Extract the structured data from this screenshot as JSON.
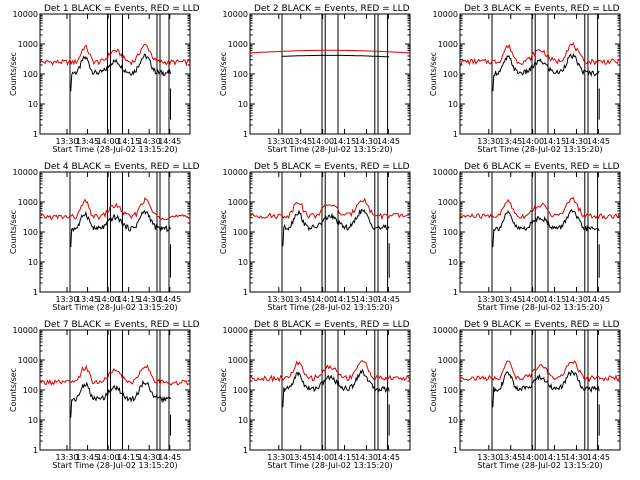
{
  "colors": {
    "events": "#000000",
    "lld": "#dd0000",
    "axis": "#000000"
  },
  "chart_data": [
    {
      "type": "line",
      "title": "Det 1  BLACK = Events, RED = LLD",
      "xlabel": "Start Time (28-Jul-02 13:15:20)",
      "ylabel": "Counts/sec",
      "xticks": [
        "13:30",
        "13:45",
        "14:00",
        "14:15",
        "14:30",
        "14:45"
      ],
      "yticks": [
        "1",
        "10",
        "100",
        "1000",
        "10000"
      ],
      "log_y": true,
      "ylim": [
        1,
        10000
      ],
      "series": [
        {
          "name": "Events",
          "level": 110,
          "dips": true
        },
        {
          "name": "LLD",
          "level": 250
        }
      ]
    },
    {
      "type": "line",
      "title": "Det 2  BLACK = Events, RED = LLD",
      "xlabel": "Start Time (28-Jul-02 13:15:20)",
      "ylabel": "Counts/sec",
      "xticks": [
        "13:30",
        "13:45",
        "14:00",
        "14:15",
        "14:30",
        "14:45"
      ],
      "yticks": [
        "1",
        "10",
        "100",
        "1000",
        "10000"
      ],
      "log_y": true,
      "ylim": [
        1,
        10000
      ],
      "series": [
        {
          "name": "Events",
          "level": 380,
          "flat": true
        },
        {
          "name": "LLD",
          "level": 560,
          "flat": true
        }
      ]
    },
    {
      "type": "line",
      "title": "Det 3  BLACK = Events, RED = LLD",
      "xlabel": "Start Time (28-Jul-02 13:15:20)",
      "ylabel": "Counts/sec",
      "xticks": [
        "13:30",
        "13:45",
        "14:00",
        "14:15",
        "14:30",
        "14:45"
      ],
      "yticks": [
        "1",
        "10",
        "100",
        "1000",
        "10000"
      ],
      "log_y": true,
      "ylim": [
        1,
        10000
      ],
      "series": [
        {
          "name": "Events",
          "level": 110,
          "dips": true
        },
        {
          "name": "LLD",
          "level": 260
        }
      ]
    },
    {
      "type": "line",
      "title": "Det 4  BLACK = Events, RED = LLD",
      "xlabel": "Start Time (28-Jul-02 13:15:20)",
      "ylabel": "Counts/sec",
      "xticks": [
        "13:30",
        "13:45",
        "14:00",
        "14:15",
        "14:30",
        "14:45"
      ],
      "yticks": [
        "1",
        "10",
        "100",
        "1000",
        "10000"
      ],
      "log_y": true,
      "ylim": [
        1,
        10000
      ],
      "series": [
        {
          "name": "Events",
          "level": 130,
          "dips": true
        },
        {
          "name": "LLD",
          "level": 320
        }
      ]
    },
    {
      "type": "line",
      "title": "Det 5  BLACK = Events, RED = LLD",
      "xlabel": "Start Time (28-Jul-02 13:15:20)",
      "ylabel": "Counts/sec",
      "xticks": [
        "13:30",
        "13:45",
        "14:00",
        "14:15",
        "14:30",
        "14:45"
      ],
      "yticks": [
        "1",
        "10",
        "100",
        "1000",
        "10000"
      ],
      "log_y": true,
      "ylim": [
        1,
        10000
      ],
      "series": [
        {
          "name": "Events",
          "level": 140,
          "dips": true
        },
        {
          "name": "LLD",
          "level": 350
        }
      ]
    },
    {
      "type": "line",
      "title": "Det 6  BLACK = Events, RED = LLD",
      "xlabel": "Start Time (28-Jul-02 13:15:20)",
      "ylabel": "Counts/sec",
      "xticks": [
        "13:30",
        "13:45",
        "14:00",
        "14:15",
        "14:30",
        "14:45"
      ],
      "yticks": [
        "1",
        "10",
        "100",
        "1000",
        "10000"
      ],
      "log_y": true,
      "ylim": [
        1,
        10000
      ],
      "series": [
        {
          "name": "Events",
          "level": 130,
          "dips": true
        },
        {
          "name": "LLD",
          "level": 340
        }
      ]
    },
    {
      "type": "line",
      "title": "Det 7  BLACK = Events, RED = LLD",
      "xlabel": "Start Time (28-Jul-02 13:15:20)",
      "ylabel": "Counts/sec",
      "xticks": [
        "13:30",
        "13:45",
        "14:00",
        "14:15",
        "14:30",
        "14:45"
      ],
      "yticks": [
        "1",
        "10",
        "100",
        "1000",
        "10000"
      ],
      "log_y": true,
      "ylim": [
        1,
        10000
      ],
      "series": [
        {
          "name": "Events",
          "level": 50,
          "dips": true
        },
        {
          "name": "LLD",
          "level": 180
        }
      ]
    },
    {
      "type": "line",
      "title": "Det 8  BLACK = Events, RED = LLD",
      "xlabel": "Start Time (28-Jul-02 13:15:20)",
      "ylabel": "Counts/sec",
      "xticks": [
        "13:30",
        "13:45",
        "14:00",
        "14:15",
        "14:30",
        "14:45"
      ],
      "yticks": [
        "1",
        "10",
        "100",
        "1000",
        "10000"
      ],
      "log_y": true,
      "ylim": [
        1,
        10000
      ],
      "series": [
        {
          "name": "Events",
          "level": 110,
          "dips": true
        },
        {
          "name": "LLD",
          "level": 250
        }
      ]
    },
    {
      "type": "line",
      "title": "Det 9  BLACK = Events, RED = LLD",
      "xlabel": "Start Time (28-Jul-02 13:15:20)",
      "ylabel": "Counts/sec",
      "xticks": [
        "13:30",
        "13:45",
        "14:00",
        "14:15",
        "14:30",
        "14:45"
      ],
      "yticks": [
        "1",
        "10",
        "100",
        "1000",
        "10000"
      ],
      "log_y": true,
      "ylim": [
        1,
        10000
      ],
      "series": [
        {
          "name": "Events",
          "level": 110,
          "dips": true
        },
        {
          "name": "LLD",
          "level": 250
        }
      ]
    }
  ]
}
